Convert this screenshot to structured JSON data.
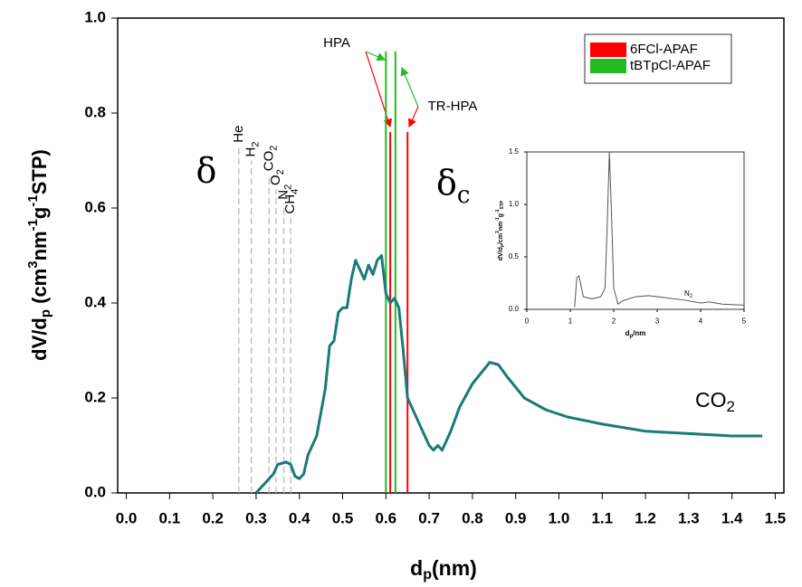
{
  "chart_data": [
    {
      "type": "line",
      "xlabel": [
        "d",
        "p",
        "(nm)"
      ],
      "ylabel": [
        "dV/d",
        "p",
        " (cm",
        "3",
        "nm",
        "-1",
        "g",
        "-1",
        "STP)"
      ],
      "xlim": [
        -0.02,
        1.52
      ],
      "ylim": [
        0,
        1
      ],
      "xticks": [
        {
          "value": 0,
          "label": "0.0"
        },
        0.1,
        0.2,
        0.3,
        0.4,
        0.5,
        0.6,
        0.7,
        0.8,
        0.9,
        {
          "value": 1,
          "label": "1.0"
        },
        1.1,
        1.2,
        1.3,
        1.4,
        1.5
      ],
      "yticks": [
        {
          "value": 0,
          "label": "0.0"
        },
        0.2,
        0.4,
        0.6,
        0.8,
        {
          "value": 1,
          "label": "1.0"
        }
      ],
      "series": [
        {
          "name": [
            "CO",
            "2"
          ],
          "color": "#1b7a78",
          "x": [
            0.3,
            0.32,
            0.34,
            0.35,
            0.37,
            0.38,
            0.39,
            0.4,
            0.41,
            0.42,
            0.44,
            0.46,
            0.47,
            0.48,
            0.49,
            0.5,
            0.51,
            0.52,
            0.53,
            0.54,
            0.55,
            0.56,
            0.57,
            0.58,
            0.59,
            0.6,
            0.61,
            0.62,
            0.63,
            0.64,
            0.65,
            0.66,
            0.67,
            0.68,
            0.69,
            0.7,
            0.71,
            0.72,
            0.73,
            0.75,
            0.77,
            0.8,
            0.84,
            0.86,
            0.88,
            0.92,
            0.97,
            1.02,
            1.1,
            1.2,
            1.3,
            1.4,
            1.47
          ],
          "values": [
            0.0,
            0.02,
            0.04,
            0.06,
            0.065,
            0.06,
            0.035,
            0.03,
            0.04,
            0.08,
            0.12,
            0.22,
            0.31,
            0.32,
            0.38,
            0.39,
            0.39,
            0.45,
            0.49,
            0.47,
            0.45,
            0.48,
            0.46,
            0.49,
            0.5,
            0.42,
            0.4,
            0.41,
            0.39,
            0.3,
            0.2,
            0.18,
            0.16,
            0.14,
            0.12,
            0.1,
            0.09,
            0.1,
            0.09,
            0.13,
            0.18,
            0.23,
            0.275,
            0.27,
            0.245,
            0.2,
            0.175,
            0.16,
            0.145,
            0.13,
            0.125,
            0.12,
            0.12
          ]
        }
      ],
      "pore_lines": [
        {
          "name": "6FCl-APAF",
          "color": "#ff0000",
          "x": [
            0.61,
            0.65
          ],
          "values": [
            0.76,
            0.76
          ]
        },
        {
          "name": "tBTpCl-APAF",
          "color": "#22bb22",
          "x": [
            0.6,
            0.622
          ],
          "values": [
            0.93,
            0.93
          ]
        }
      ],
      "legend": "upper right",
      "gas_lines": {
        "color": "#bbbbbb",
        "names": [
          [
            "He"
          ],
          [
            "H",
            "2"
          ],
          [
            "CO",
            "2"
          ],
          [
            "O",
            "2"
          ],
          [
            "N",
            "2"
          ],
          [
            "CH",
            "4"
          ]
        ],
        "x": [
          0.26,
          0.289,
          0.33,
          0.346,
          0.364,
          0.38
        ],
        "values": [
          0.73,
          0.7,
          0.67,
          0.64,
          0.61,
          0.58
        ]
      },
      "annotations": {
        "hpa": "HPA",
        "tr_hpa": "TR-HPA",
        "delta": "δ",
        "delta_c": [
          "δ",
          "c"
        ]
      }
    },
    {
      "type": "line",
      "xlabel": [
        "d",
        "p",
        "/nm"
      ],
      "ylabel": [
        "dV/d",
        "p",
        "/cm",
        "3",
        "nm",
        "-1",
        "g",
        "-1",
        "STP"
      ],
      "xlim": [
        0,
        5
      ],
      "ylim": [
        0,
        1.5
      ],
      "xticks": [
        0,
        1,
        2,
        3,
        4,
        5
      ],
      "yticks": [
        {
          "value": 0,
          "label": "0.0"
        },
        0.5,
        {
          "value": 1,
          "label": "1.0"
        },
        1.5
      ],
      "series": [
        {
          "color": "#555555",
          "x": [
            1.1,
            1.15,
            1.2,
            1.3,
            1.5,
            1.7,
            1.8,
            1.85,
            1.9,
            1.95,
            2.0,
            2.1,
            2.2,
            2.5,
            2.8,
            3.2,
            3.6,
            4.0,
            4.2,
            4.5,
            5.0
          ],
          "values": [
            0.02,
            0.3,
            0.32,
            0.12,
            0.1,
            0.12,
            0.2,
            0.8,
            1.5,
            0.9,
            0.2,
            0.05,
            0.08,
            0.12,
            0.13,
            0.11,
            0.09,
            0.06,
            0.07,
            0.05,
            0.04
          ]
        }
      ],
      "annotation": [
        "N",
        "2"
      ]
    }
  ]
}
